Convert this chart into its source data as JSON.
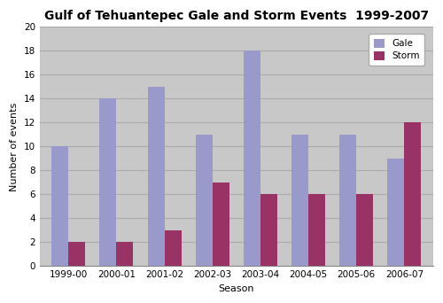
{
  "title": "Gulf of Tehuantepec Gale and Storm Events  1999-2007",
  "seasons": [
    "1999-00",
    "2000-01",
    "2001-02",
    "2002-03",
    "2003-04",
    "2004-05",
    "2005-06",
    "2006-07"
  ],
  "gale_values": [
    10,
    14,
    15,
    11,
    18,
    11,
    11,
    9
  ],
  "storm_values": [
    2,
    2,
    3,
    7,
    6,
    6,
    6,
    12
  ],
  "gale_color": "#9999cc",
  "storm_color": "#993366",
  "xlabel": "Season",
  "ylabel": "Number of events",
  "ylim": [
    0,
    20
  ],
  "yticks": [
    0,
    2,
    4,
    6,
    8,
    10,
    12,
    14,
    16,
    18,
    20
  ],
  "legend_labels": [
    "Gale",
    "Storm"
  ],
  "background_color": "#ffffff",
  "plot_bg_color": "#c8c8c8",
  "grid_color": "#aaaaaa",
  "bar_width": 0.35,
  "title_fontsize": 10,
  "axis_fontsize": 8,
  "tick_fontsize": 7.5
}
